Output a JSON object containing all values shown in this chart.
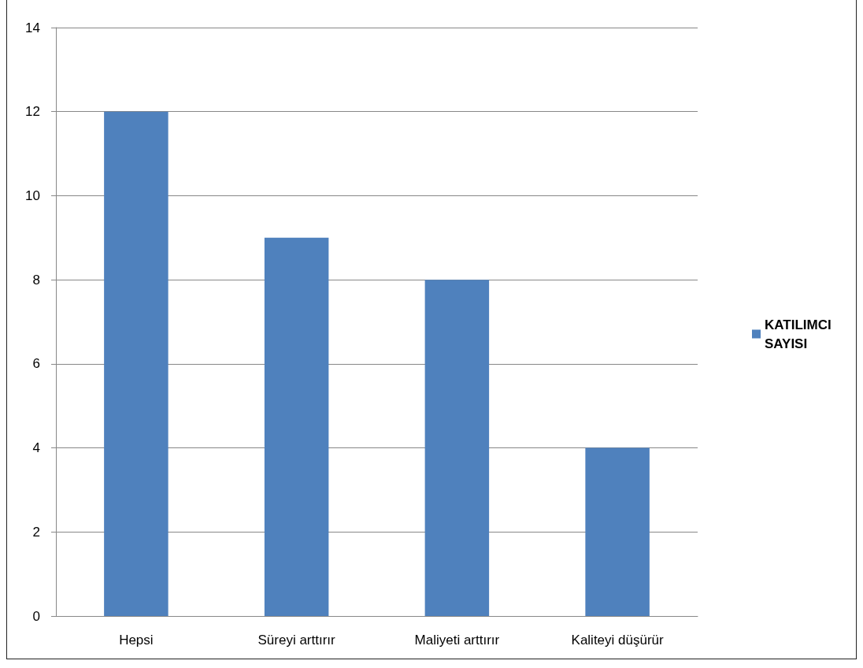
{
  "chart_data": {
    "type": "bar",
    "categories": [
      "Hepsi",
      "Süreyi arttırır",
      "Maliyeti arttırır",
      "Kaliteyi düşürür"
    ],
    "series": [
      {
        "name": "KATILIMCI SAYISI",
        "color": "#4f81bd",
        "values": [
          12,
          9,
          8,
          4
        ]
      }
    ],
    "ylim": [
      0,
      14
    ],
    "yticks": [
      0,
      2,
      4,
      6,
      8,
      10,
      12,
      14
    ],
    "grid": "y",
    "legend": "right"
  }
}
